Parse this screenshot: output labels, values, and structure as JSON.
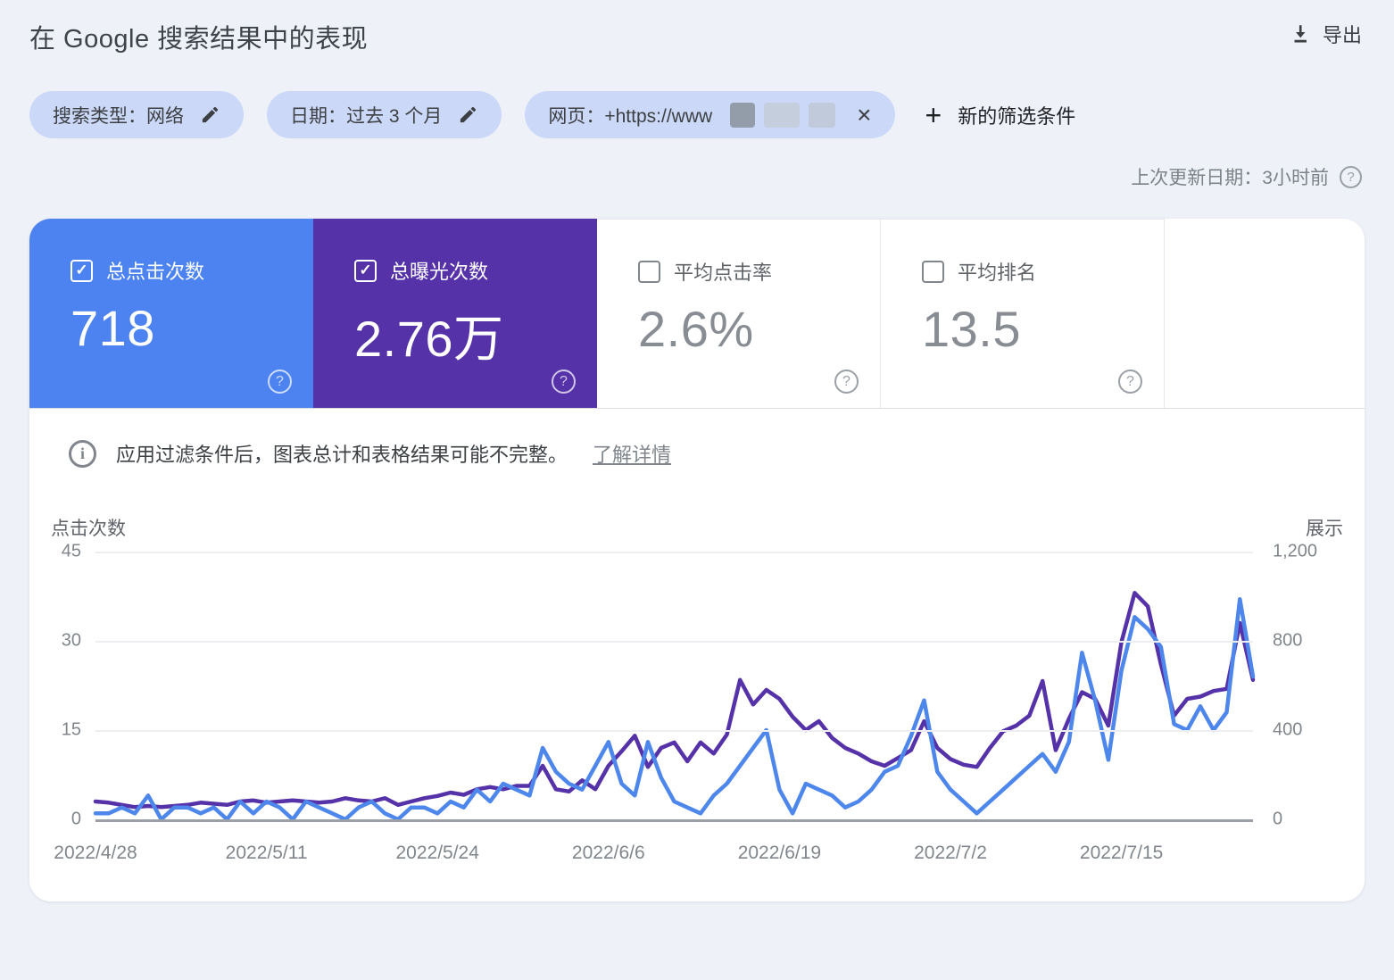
{
  "header": {
    "title": "在 Google 搜索结果中的表现",
    "export_label": "导出"
  },
  "filters": {
    "chips": [
      {
        "label": "搜索类型：网络"
      },
      {
        "label": "日期：过去 3 个月"
      },
      {
        "label": "网页：+https://www",
        "redacted": true
      }
    ],
    "new_filter_label": "新的筛选条件"
  },
  "last_update": {
    "label": "上次更新日期：3小时前"
  },
  "metric_cards": [
    {
      "label": "总点击次数",
      "value": "718",
      "checked": true,
      "accent": "#4c83f1"
    },
    {
      "label": "总曝光次数",
      "value": "2.76万",
      "checked": true,
      "accent": "#5632a8"
    },
    {
      "label": "平均点击率",
      "value": "2.6%",
      "checked": false
    },
    {
      "label": "平均排名",
      "value": "13.5",
      "checked": false
    }
  ],
  "notice": {
    "text": "应用过滤条件后，图表总计和表格结果可能不完整。",
    "link": "了解详情"
  },
  "chart_data": {
    "type": "line",
    "title": "",
    "xlabel": "",
    "grid": true,
    "legend": "none",
    "left_axis": {
      "title": "点击次数",
      "max": 45,
      "ticks": [
        0,
        15,
        30,
        45
      ],
      "tick_labels": [
        "0",
        "15",
        "30",
        "45"
      ]
    },
    "right_axis": {
      "title": "展示",
      "max": 1200,
      "ticks": [
        0,
        400,
        800,
        1200
      ],
      "tick_labels": [
        "0",
        "400",
        "800",
        "1,200"
      ]
    },
    "x_tick_labels": [
      "2022/4/28",
      "2022/5/11",
      "2022/5/24",
      "2022/6/6",
      "2022/6/19",
      "2022/7/2",
      "2022/7/15"
    ],
    "x_tick_day_index": [
      0,
      13,
      26,
      39,
      52,
      65,
      78
    ],
    "days_total": 88,
    "date_range": {
      "start": "2022/4/28",
      "end": "2022/7/25"
    },
    "series": [
      {
        "name": "展示",
        "axis": "right",
        "color": "#5632a8",
        "values": [
          80,
          75,
          65,
          55,
          60,
          55,
          60,
          65,
          75,
          70,
          65,
          80,
          85,
          75,
          80,
          85,
          80,
          75,
          80,
          95,
          85,
          80,
          95,
          65,
          80,
          95,
          105,
          120,
          110,
          135,
          145,
          135,
          150,
          150,
          240,
          135,
          125,
          175,
          135,
          240,
          305,
          375,
          235,
          320,
          345,
          260,
          345,
          295,
          380,
          625,
          515,
          580,
          540,
          460,
          400,
          440,
          365,
          320,
          295,
          260,
          240,
          275,
          310,
          440,
          320,
          270,
          245,
          235,
          320,
          395,
          420,
          465,
          620,
          310,
          450,
          570,
          540,
          420,
          795,
          1015,
          955,
          695,
          465,
          540,
          550,
          575,
          585,
          880,
          625
        ]
      },
      {
        "name": "点击次数",
        "axis": "left",
        "color": "#4e87ec",
        "values": [
          1,
          1,
          2,
          1,
          4,
          0,
          2,
          2,
          1,
          2,
          0,
          3,
          1,
          3,
          2,
          0,
          3,
          2,
          1,
          0,
          2,
          3,
          1,
          0,
          2,
          2,
          1,
          3,
          2,
          5,
          3,
          6,
          5,
          4,
          12,
          8,
          6,
          5,
          9,
          13,
          6,
          4,
          13,
          7,
          3,
          2,
          1,
          4,
          6,
          9,
          12,
          15,
          5,
          1,
          6,
          5,
          4,
          2,
          3,
          5,
          8,
          9,
          14,
          20,
          8,
          5,
          3,
          1,
          3,
          5,
          7,
          9,
          11,
          8,
          13,
          28,
          20,
          10,
          25,
          34,
          32,
          29,
          16,
          15,
          19,
          15,
          18,
          37,
          24
        ]
      }
    ]
  }
}
